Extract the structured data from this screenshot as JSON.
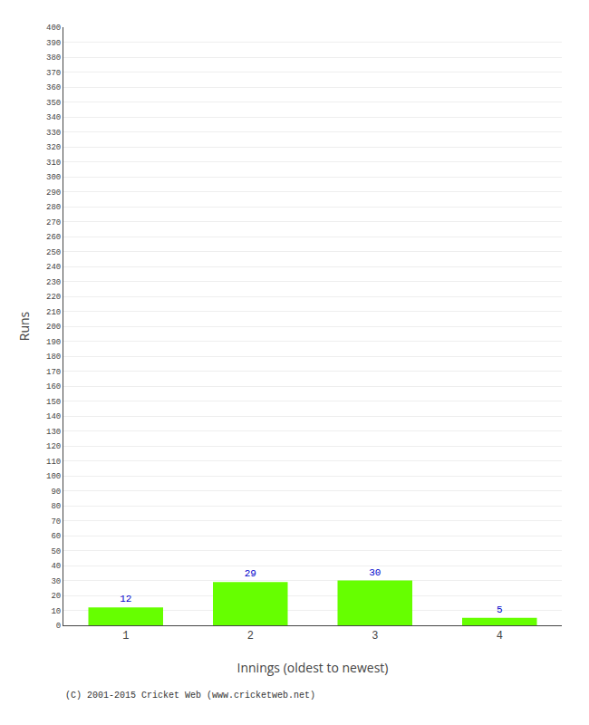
{
  "chart_data": {
    "type": "bar",
    "categories": [
      "1",
      "2",
      "3",
      "4"
    ],
    "values": [
      12,
      29,
      30,
      5
    ],
    "color": "#66ff00",
    "xlabel": "Innings (oldest to newest)",
    "ylabel": "Runs",
    "ylim": [
      0,
      400
    ],
    "yticks": [
      0,
      10,
      20,
      30,
      40,
      50,
      60,
      70,
      80,
      90,
      100,
      110,
      120,
      130,
      140,
      150,
      160,
      170,
      180,
      190,
      200,
      210,
      220,
      230,
      240,
      250,
      260,
      270,
      280,
      290,
      300,
      310,
      320,
      330,
      340,
      350,
      360,
      370,
      380,
      390,
      400
    ],
    "grid": true,
    "data_labels": true,
    "annotations": [
      "(C) 2001-2015 Cricket Web (www.cricketweb.net)"
    ]
  }
}
